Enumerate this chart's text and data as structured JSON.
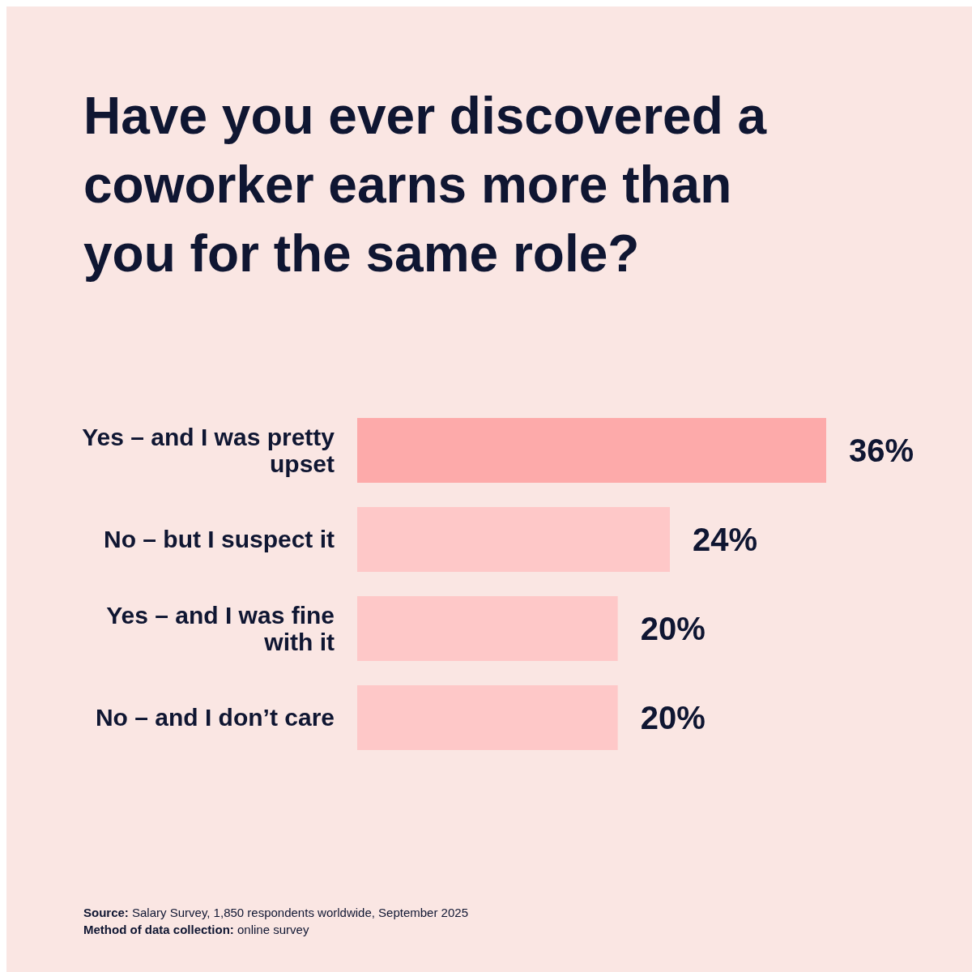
{
  "chart_data": {
    "type": "bar",
    "orientation": "horizontal",
    "title": "Have you ever discovered a coworker earns more than you for the same role?",
    "categories": [
      "Yes – and I was pretty upset",
      "No – but I suspect it",
      "Yes – and I was fine with it",
      "No – and I don’t care"
    ],
    "values": [
      36,
      24,
      20,
      20
    ],
    "value_labels": [
      "36%",
      "24%",
      "20%",
      "20%"
    ],
    "colors": [
      "#fdaaaa",
      "#fec8c8",
      "#fec8c8",
      "#fec8c8"
    ],
    "annotations": [
      "Source: Salary Survey, 1,850 respondents worldwide, September 2025",
      "Method of data collection: online survey"
    ]
  }
}
